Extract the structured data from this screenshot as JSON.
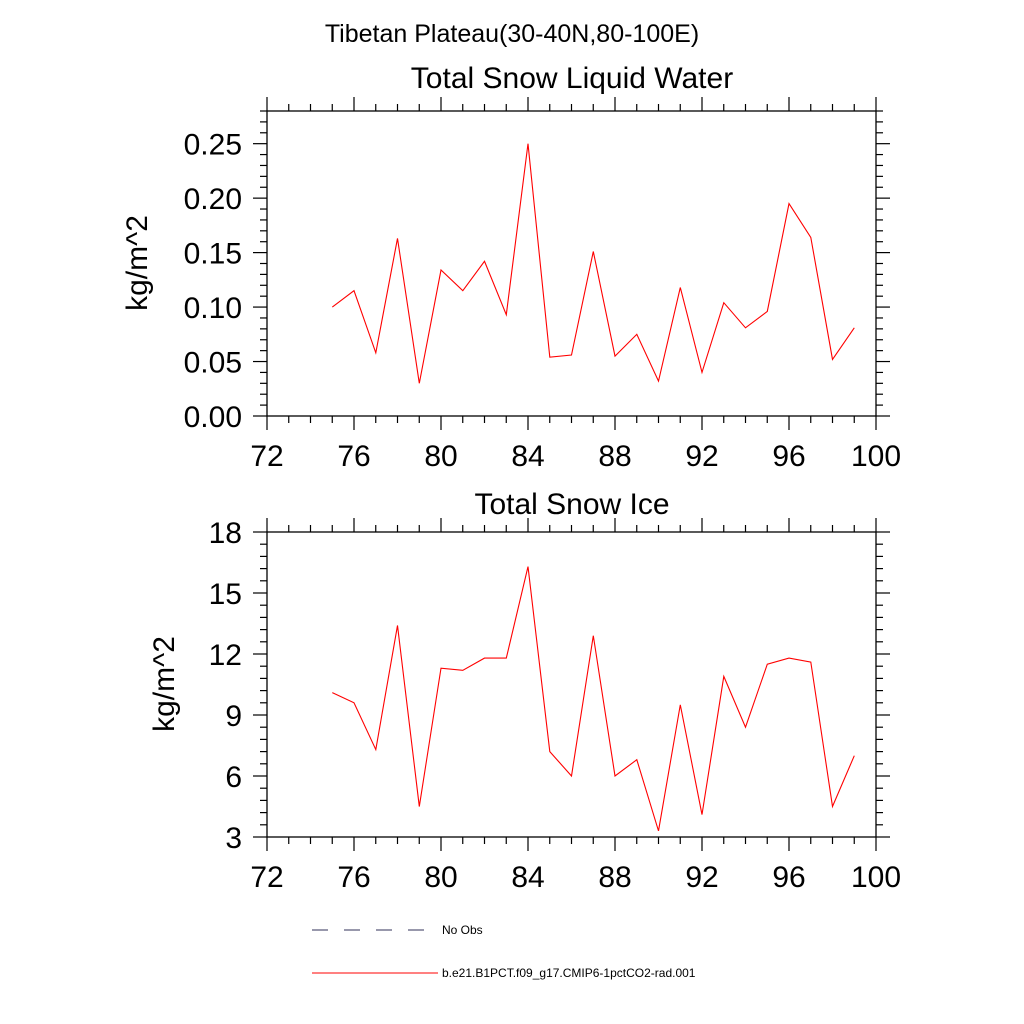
{
  "page_title": "Tibetan Plateau(30-40N,80-100E)",
  "chart_data": [
    {
      "type": "line",
      "title": "Total Snow Liquid Water",
      "xlabel": "",
      "ylabel": "kg/m^2",
      "xlim": [
        72,
        100
      ],
      "ylim": [
        0,
        0.28
      ],
      "xticks": [
        72,
        76,
        80,
        84,
        88,
        92,
        96,
        100
      ],
      "xtick_labels": [
        "72",
        "76",
        "80",
        "84",
        "88",
        "92",
        "96",
        "100"
      ],
      "yticks": [
        0,
        0.05,
        0.1,
        0.15,
        0.2,
        0.25
      ],
      "ytick_labels": [
        "0.00",
        "0.05",
        "0.10",
        "0.15",
        "0.20",
        "0.25"
      ],
      "grid": false,
      "series": [
        {
          "name": "b.e21.B1PCT.f09_g17.CMIP6-1pctCO2-rad.001",
          "color": "#ff0000",
          "x": [
            75,
            76,
            77,
            78,
            79,
            80,
            81,
            82,
            83,
            84,
            85,
            86,
            87,
            88,
            89,
            90,
            91,
            92,
            93,
            94,
            95,
            96,
            97,
            98,
            99
          ],
          "y": [
            0.1,
            0.115,
            0.058,
            0.163,
            0.03,
            0.134,
            0.115,
            0.142,
            0.093,
            0.25,
            0.054,
            0.056,
            0.151,
            0.055,
            0.075,
            0.032,
            0.118,
            0.04,
            0.104,
            0.081,
            0.096,
            0.195,
            0.164,
            0.052,
            0.081
          ]
        }
      ]
    },
    {
      "type": "line",
      "title": "Total Snow Ice",
      "xlabel": "",
      "ylabel": "kg/m^2",
      "xlim": [
        72,
        100
      ],
      "ylim": [
        3,
        18
      ],
      "xticks": [
        72,
        76,
        80,
        84,
        88,
        92,
        96,
        100
      ],
      "xtick_labels": [
        "72",
        "76",
        "80",
        "84",
        "88",
        "92",
        "96",
        "100"
      ],
      "yticks": [
        3,
        6,
        9,
        12,
        15,
        18
      ],
      "ytick_labels": [
        "3",
        "6",
        "9",
        "12",
        "15",
        "18"
      ],
      "grid": false,
      "series": [
        {
          "name": "b.e21.B1PCT.f09_g17.CMIP6-1pctCO2-rad.001",
          "color": "#ff0000",
          "x": [
            75,
            76,
            77,
            78,
            79,
            80,
            81,
            82,
            83,
            84,
            85,
            86,
            87,
            88,
            89,
            90,
            91,
            92,
            93,
            94,
            95,
            96,
            97,
            98,
            99
          ],
          "y": [
            10.1,
            9.6,
            7.3,
            13.4,
            4.5,
            11.3,
            11.2,
            11.8,
            11.8,
            16.3,
            7.2,
            6.0,
            12.9,
            6.0,
            6.8,
            3.3,
            9.5,
            4.1,
            10.9,
            8.4,
            11.5,
            11.8,
            11.6,
            4.5,
            7.0
          ]
        }
      ]
    }
  ],
  "legend": {
    "placement": "bottom",
    "entries": [
      {
        "label": "No Obs",
        "color": "#5a5a7a",
        "style": "dashed"
      },
      {
        "label": "b.e21.B1PCT.f09_g17.CMIP6-1pctCO2-rad.001",
        "color": "#ff0000",
        "style": "solid"
      }
    ]
  }
}
